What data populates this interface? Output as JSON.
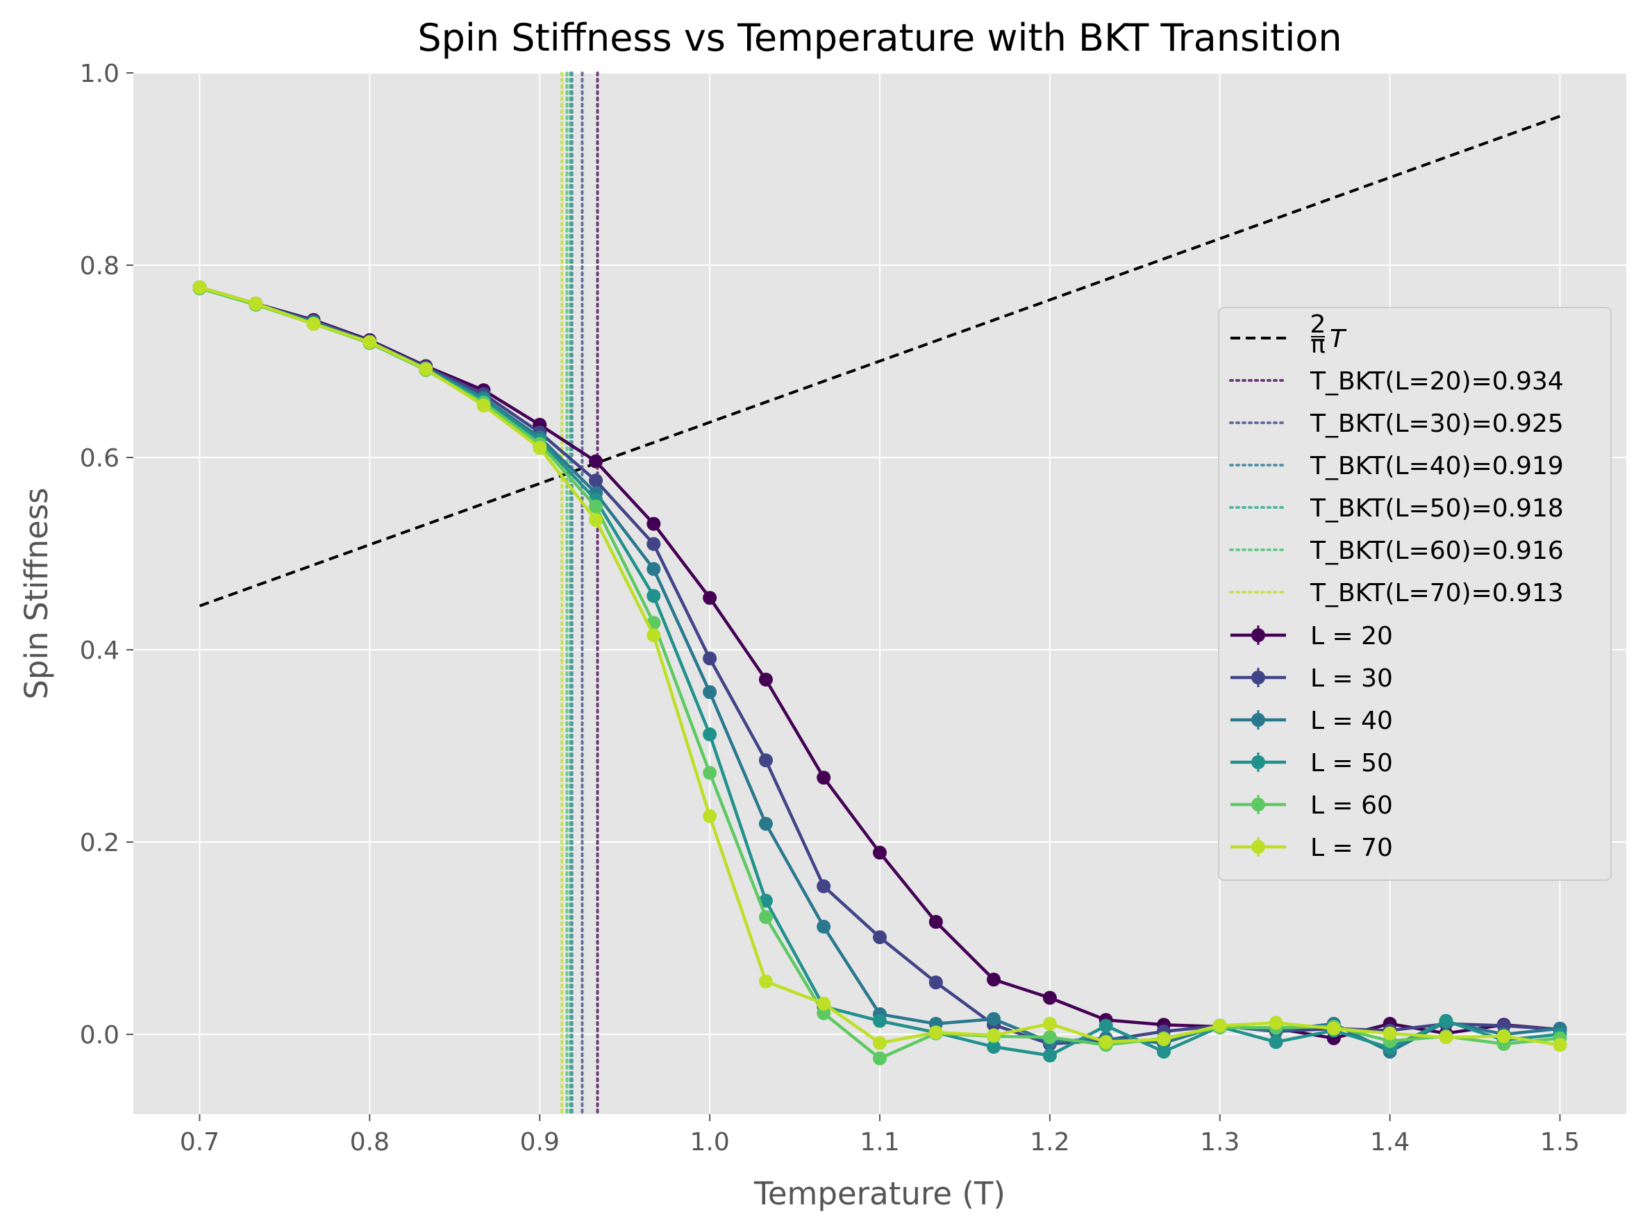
{
  "chart_data": {
    "type": "line",
    "title": "Spin Stiffness vs Temperature with BKT Transition",
    "xlabel": "Temperature (T)",
    "ylabel": "Spin Stiffness",
    "xlim": [
      0.661,
      1.539
    ],
    "ylim": [
      -0.083,
      1.0
    ],
    "xticks": [
      "0.7",
      "0.8",
      "0.9",
      "1.0",
      "1.1",
      "1.2",
      "1.3",
      "1.4",
      "1.5"
    ],
    "yticks": [
      "0.0",
      "0.2",
      "0.4",
      "0.6",
      "0.8",
      "1.0"
    ],
    "grid": true,
    "legend_position": "center-right",
    "reference_line": {
      "label_numerator": "2",
      "label_denominator": "π",
      "label_variable": "T",
      "x": [
        0.7,
        1.5
      ],
      "y": [
        0.4456,
        0.9549
      ],
      "color": "#000000",
      "style": "dashed"
    },
    "bkt_lines": [
      {
        "label": "T_BKT(L=20)=0.934",
        "x": 0.934,
        "color": "#440154"
      },
      {
        "label": "T_BKT(L=30)=0.925",
        "x": 0.925,
        "color": "#414487"
      },
      {
        "label": "T_BKT(L=40)=0.919",
        "x": 0.919,
        "color": "#2a788e"
      },
      {
        "label": "T_BKT(L=50)=0.918",
        "x": 0.918,
        "color": "#22a884"
      },
      {
        "label": "T_BKT(L=60)=0.916",
        "x": 0.916,
        "color": "#44bf70"
      },
      {
        "label": "T_BKT(L=70)=0.913",
        "x": 0.913,
        "color": "#bddf26"
      }
    ],
    "x": [
      0.7,
      0.733,
      0.767,
      0.8,
      0.833,
      0.867,
      0.9,
      0.933,
      0.967,
      1.0,
      1.033,
      1.067,
      1.1,
      1.133,
      1.167,
      1.2,
      1.233,
      1.267,
      1.3,
      1.333,
      1.367,
      1.4,
      1.433,
      1.467,
      1.5
    ],
    "series": [
      {
        "name": "L = 20",
        "color": "#440154",
        "values": [
          0.777,
          0.76,
          0.743,
          0.722,
          0.695,
          0.67,
          0.634,
          0.596,
          0.531,
          0.454,
          0.369,
          0.267,
          0.189,
          0.117,
          0.057,
          0.038,
          0.015,
          0.01,
          0.008,
          0.006,
          -0.004,
          0.011,
          0.001,
          0.01,
          0.005
        ]
      },
      {
        "name": "L = 30",
        "color": "#414487",
        "values": [
          0.777,
          0.759,
          0.742,
          0.721,
          0.694,
          0.666,
          0.626,
          0.576,
          0.51,
          0.391,
          0.285,
          0.154,
          0.101,
          0.054,
          0.01,
          -0.01,
          -0.006,
          0.003,
          0.009,
          0.003,
          0.006,
          0.004,
          0.011,
          0.009,
          0.005
        ]
      },
      {
        "name": "L = 40",
        "color": "#2a788e",
        "values": [
          0.776,
          0.76,
          0.741,
          0.72,
          0.693,
          0.662,
          0.621,
          0.563,
          0.484,
          0.356,
          0.219,
          0.112,
          0.021,
          0.011,
          0.016,
          -0.008,
          -0.004,
          -0.009,
          0.009,
          0.004,
          0.011,
          -0.018,
          0.013,
          0.0,
          0.006
        ]
      },
      {
        "name": "L = 50",
        "color": "#21918c",
        "values": [
          0.776,
          0.759,
          0.74,
          0.719,
          0.692,
          0.66,
          0.618,
          0.556,
          0.456,
          0.312,
          0.139,
          0.029,
          0.014,
          0.002,
          -0.013,
          -0.022,
          0.009,
          -0.018,
          0.008,
          -0.008,
          0.004,
          -0.014,
          0.014,
          -0.006,
          0.0
        ]
      },
      {
        "name": "L = 60",
        "color": "#5ec962",
        "values": [
          0.776,
          0.759,
          0.739,
          0.719,
          0.691,
          0.657,
          0.614,
          0.549,
          0.428,
          0.272,
          0.122,
          0.022,
          -0.025,
          0.001,
          -0.002,
          -0.003,
          -0.011,
          -0.004,
          0.007,
          0.007,
          0.008,
          -0.007,
          -0.002,
          -0.01,
          -0.004
        ]
      },
      {
        "name": "L = 70",
        "color": "#bddf26",
        "values": [
          0.777,
          0.76,
          0.739,
          0.72,
          0.692,
          0.654,
          0.61,
          0.535,
          0.415,
          0.227,
          0.055,
          0.032,
          -0.009,
          0.002,
          -0.001,
          0.011,
          -0.008,
          -0.005,
          0.009,
          0.012,
          0.006,
          0.001,
          -0.003,
          -0.002,
          -0.011
        ]
      }
    ]
  }
}
